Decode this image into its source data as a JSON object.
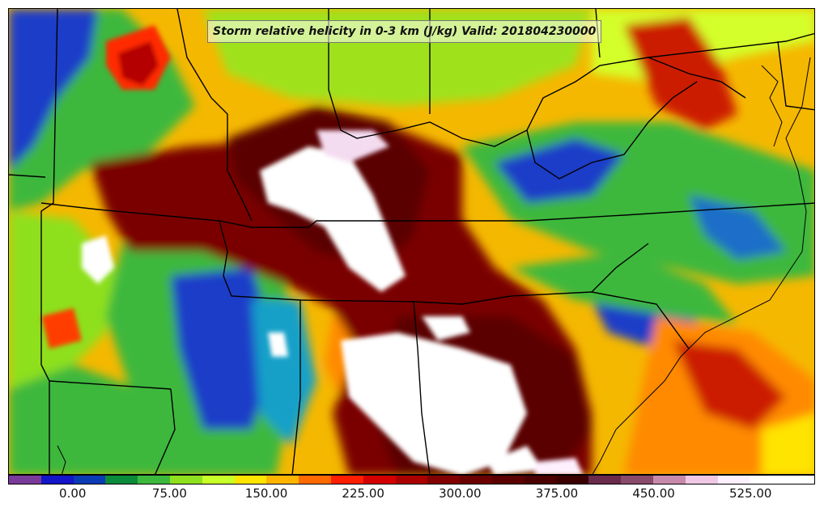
{
  "title": "Storm relative helicity in 0-3 km (J/kg) Valid: 201804230000",
  "colorbar": {
    "min": -50,
    "max": 575,
    "step": 25,
    "colors": [
      "#7a3a9a",
      "#1414c8",
      "#0a3ab4",
      "#0a8a3a",
      "#3cb83c",
      "#8ee01e",
      "#c8ff28",
      "#ffe400",
      "#ffb400",
      "#ff6a00",
      "#ff1e00",
      "#d40000",
      "#aa0000",
      "#820000",
      "#6a0000",
      "#5a0000",
      "#4a0000",
      "#3a0000",
      "#6a2a4a",
      "#8a4a6a",
      "#c88aaa",
      "#f0c8e6",
      "#fff0ff",
      "#ffffff",
      "#ffffff"
    ],
    "ticks": [
      "0.00",
      "75.00",
      "150.00",
      "225.00",
      "300.00",
      "375.00",
      "450.00",
      "525.00"
    ],
    "tick_values": [
      0,
      75,
      150,
      225,
      300,
      375,
      450,
      525
    ]
  }
}
